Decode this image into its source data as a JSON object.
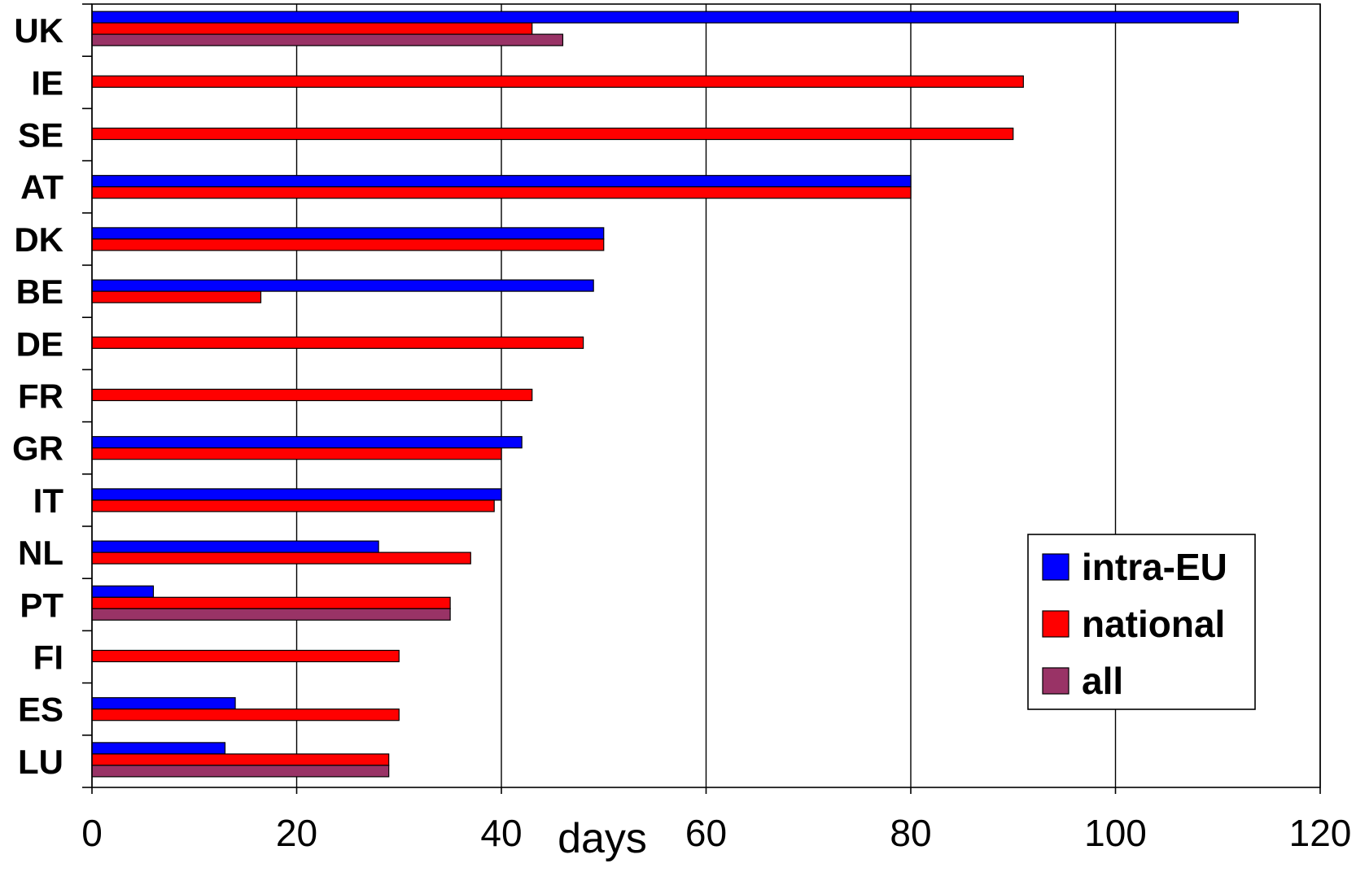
{
  "chart_data": {
    "type": "bar",
    "orientation": "horizontal",
    "categories": [
      "UK",
      "IE",
      "SE",
      "AT",
      "DK",
      "BE",
      "DE",
      "FR",
      "GR",
      "IT",
      "NL",
      "PT",
      "FI",
      "ES",
      "LU"
    ],
    "series": [
      {
        "name": "intra-EU",
        "color": "#0000ff",
        "values": [
          112,
          null,
          null,
          80,
          50,
          49,
          null,
          null,
          42,
          40,
          28,
          6,
          null,
          14,
          13
        ]
      },
      {
        "name": "national",
        "color": "#ff0000",
        "values": [
          43,
          91,
          90,
          80,
          50,
          16.5,
          48,
          43,
          40,
          39.3,
          37,
          35,
          30,
          30,
          29
        ]
      },
      {
        "name": "all",
        "color": "#993366",
        "values": [
          46,
          null,
          null,
          null,
          null,
          null,
          null,
          null,
          null,
          null,
          null,
          35,
          null,
          null,
          29
        ]
      }
    ],
    "xlabel": "days",
    "ylabel": "",
    "xlim": [
      0,
      120
    ],
    "xticks": [
      "0",
      "20",
      "40",
      "60",
      "80",
      "100",
      "120"
    ],
    "grid": true,
    "legend_position": "bottom-right"
  }
}
